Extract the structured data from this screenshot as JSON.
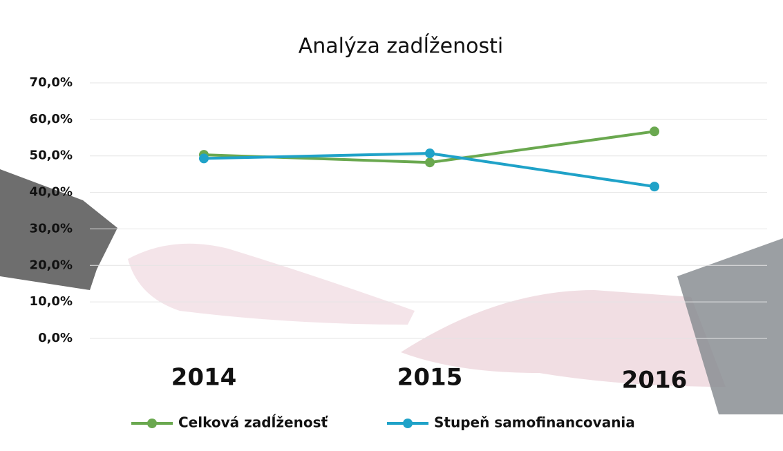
{
  "chart_data": {
    "type": "line",
    "title": "Analýza zadĺženosti",
    "categories": [
      "2014",
      "2015",
      "2016"
    ],
    "series": [
      {
        "name": "Celková zadĺženosť",
        "color": "#6aa84f",
        "values": [
          50.3,
          48.2,
          56.7
        ]
      },
      {
        "name": "Stupeň samofinancovania",
        "color": "#1fa2c8",
        "values": [
          49.3,
          50.7,
          41.6
        ]
      }
    ],
    "ylim": [
      0,
      70
    ],
    "yticks": [
      {
        "value": 0,
        "label": "0,0%"
      },
      {
        "value": 10,
        "label": "10,0%"
      },
      {
        "value": 20,
        "label": "20,0%"
      },
      {
        "value": 30,
        "label": "30,0%"
      },
      {
        "value": 40,
        "label": "40,0%"
      },
      {
        "value": 50,
        "label": "50,0%"
      },
      {
        "value": 60,
        "label": "60,0%"
      },
      {
        "value": 70,
        "label": "70,0%"
      }
    ],
    "grid": true
  }
}
